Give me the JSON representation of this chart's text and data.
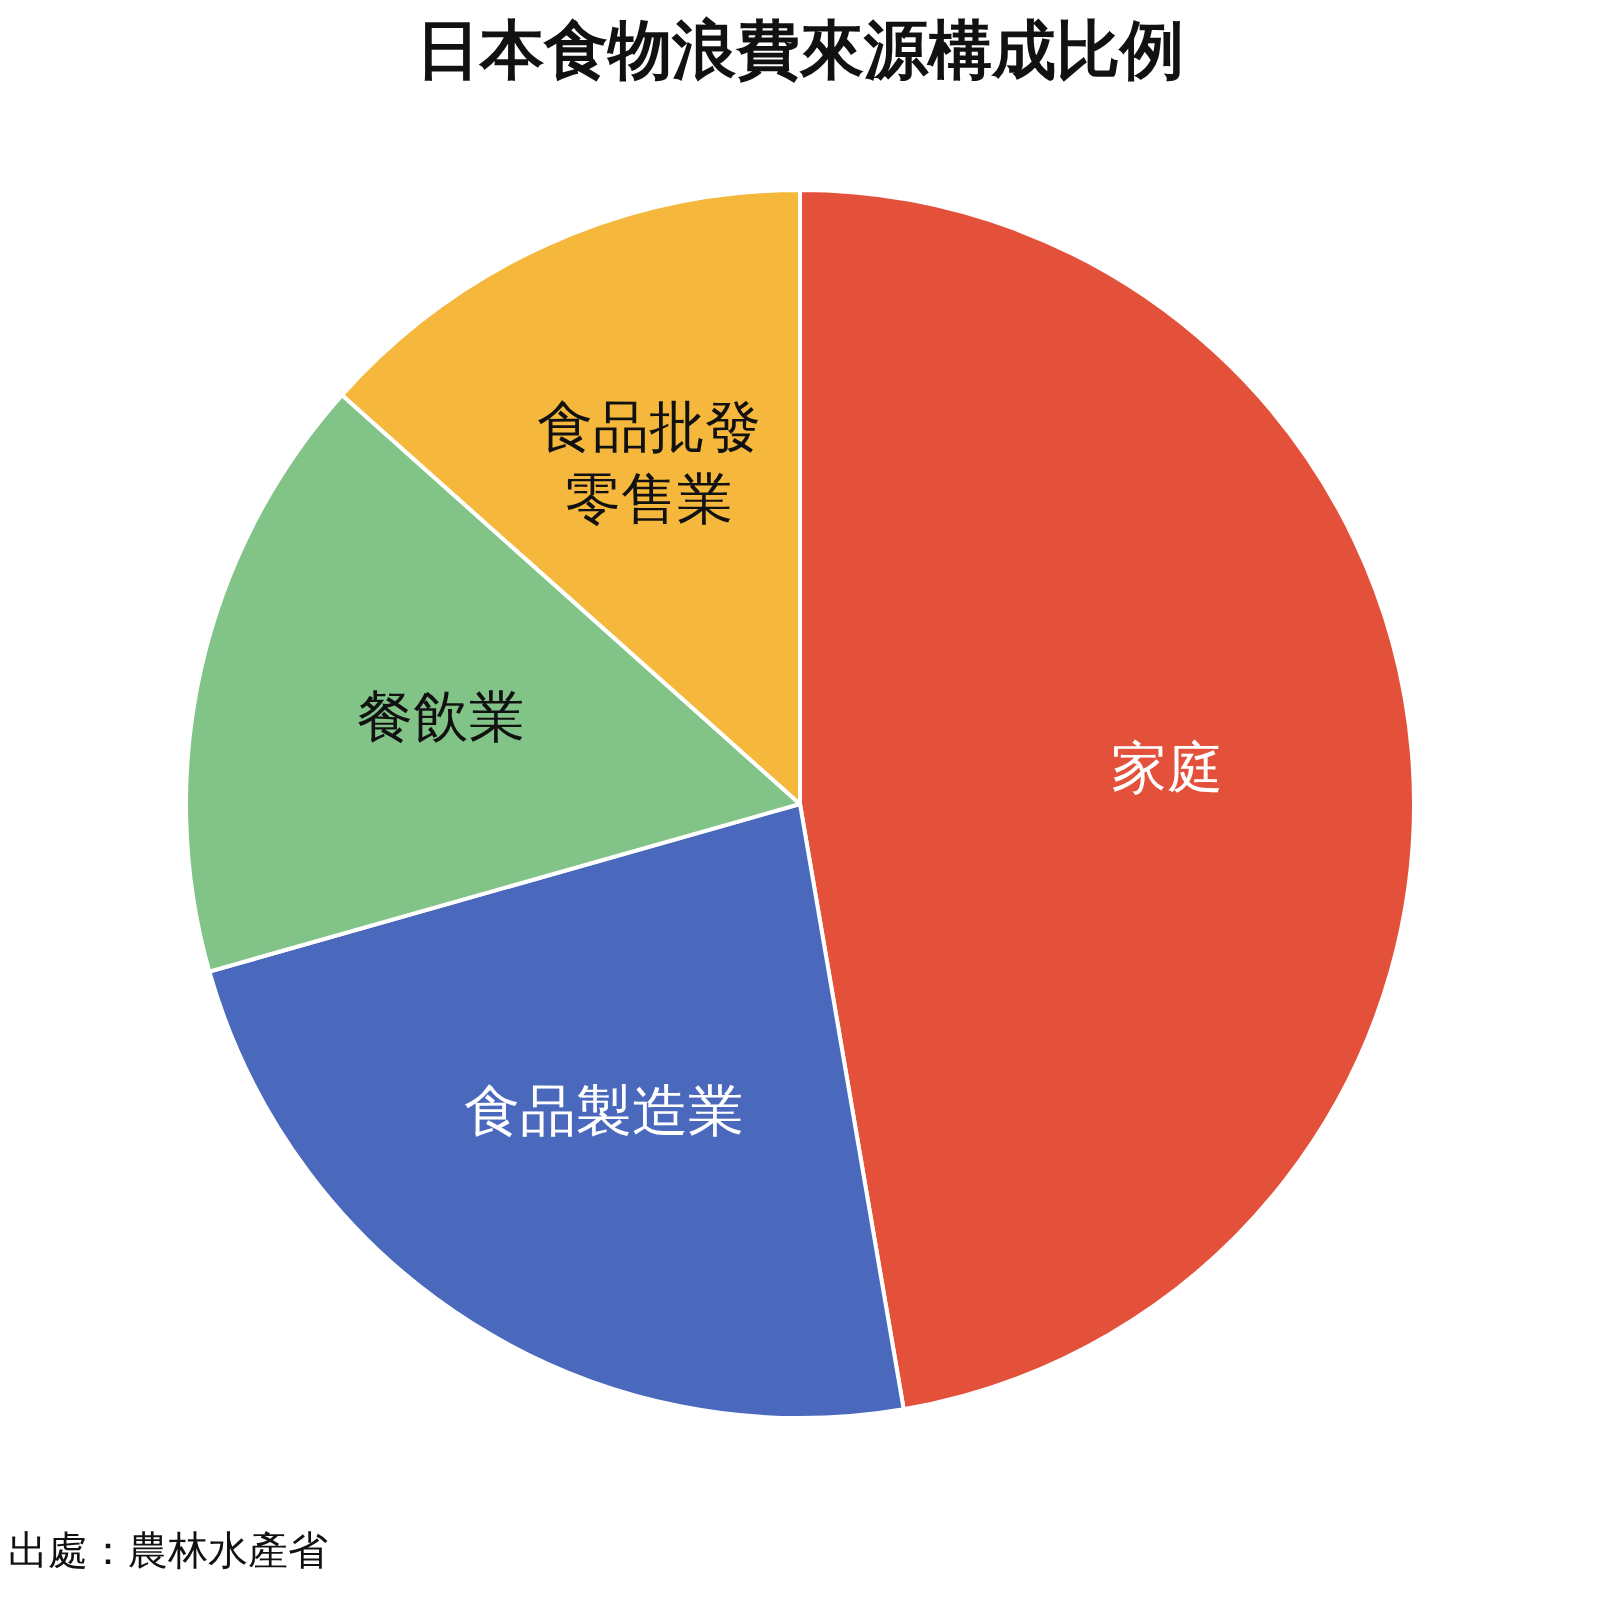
{
  "chart_data": {
    "type": "pie",
    "title": "日本食物浪費來源構成比例",
    "categories": [
      "家庭",
      "食品製造業",
      "餐飲業",
      "食品批發零售業"
    ],
    "values": [
      47.3,
      23.3,
      16.0,
      13.4
    ],
    "colors": [
      "#e4513a",
      "#4a69bd",
      "#82c488",
      "#f5b83d"
    ],
    "legend": false,
    "annotations": [
      "出處：農林水產省"
    ]
  }
}
